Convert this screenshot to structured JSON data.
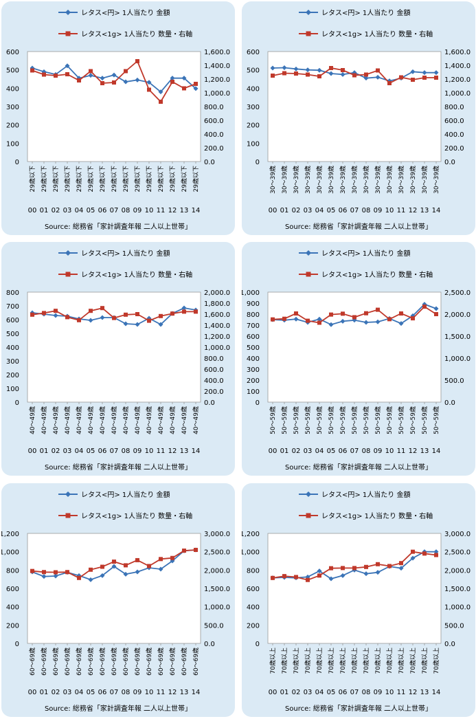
{
  "legend": {
    "amount": "レタス<円> 1人当たり 金額",
    "quantity": "レタス<1g> 1人当たり 数量・右軸"
  },
  "source": "Source: 総務省「家計調査年報 二人以上世帯」",
  "colors": {
    "amount": "#3b74b7",
    "quantity": "#c0392b"
  },
  "x_year_labels": [
    "00",
    "01",
    "02",
    "03",
    "04",
    "05",
    "06",
    "07",
    "08",
    "09",
    "10",
    "11",
    "12",
    "13",
    "14"
  ],
  "chart_data": [
    {
      "type": "line",
      "age_label": "29歳以下",
      "left_ticks": [
        "0",
        "100",
        "200",
        "300",
        "400",
        "500",
        "600"
      ],
      "right_ticks": [
        "0.0",
        "200.0",
        "400.0",
        "600.0",
        "800.0",
        "1,000.0",
        "1,200.0",
        "1,400.0",
        "1,600.0"
      ],
      "ylim_left": [
        0,
        600
      ],
      "ylim_right": [
        0,
        1600
      ],
      "series": [
        {
          "name": "レタス<円> 1人当たり 金額",
          "axis": "left",
          "values": [
            510,
            490,
            475,
            522,
            455,
            470,
            455,
            472,
            435,
            445,
            432,
            380,
            455,
            455,
            398
          ]
        },
        {
          "name": "レタス<1g> 1人当たり 数量・右軸",
          "axis": "right",
          "values": [
            1325,
            1265,
            1250,
            1270,
            1180,
            1315,
            1140,
            1150,
            1315,
            1460,
            1045,
            870,
            1160,
            1065,
            1130
          ]
        }
      ]
    },
    {
      "type": "line",
      "age_label": "30～39歳",
      "left_ticks": [
        "0",
        "100",
        "200",
        "300",
        "400",
        "500",
        "600"
      ],
      "right_ticks": [
        "0.0",
        "200.0",
        "400.0",
        "600.0",
        "800.0",
        "1,000.0",
        "1,200.0",
        "1,400.0",
        "1,600.0"
      ],
      "ylim_left": [
        0,
        600
      ],
      "ylim_right": [
        0,
        1600
      ],
      "series": [
        {
          "name": "レタス<円> 1人当たり 金額",
          "axis": "left",
          "values": [
            510,
            512,
            505,
            500,
            498,
            480,
            475,
            485,
            455,
            460,
            440,
            455,
            490,
            485,
            485
          ]
        },
        {
          "name": "レタス<1g> 1人当たり 数量・右軸",
          "axis": "right",
          "values": [
            1250,
            1285,
            1280,
            1265,
            1240,
            1360,
            1330,
            1255,
            1265,
            1325,
            1140,
            1225,
            1190,
            1220,
            1220
          ]
        }
      ]
    },
    {
      "type": "line",
      "age_label": "40～49歳",
      "left_ticks": [
        "0",
        "100",
        "200",
        "300",
        "400",
        "500",
        "600",
        "700",
        "800"
      ],
      "right_ticks": [
        "0.0",
        "200.0",
        "400.0",
        "600.0",
        "800.0",
        "1,000.0",
        "1,200.0",
        "1,400.0",
        "1,600.0",
        "1,800.0",
        "2,000.0"
      ],
      "ylim_left": [
        0,
        800
      ],
      "ylim_right": [
        0,
        2000
      ],
      "series": [
        {
          "name": "レタス<円> 1人当たり 金額",
          "axis": "left",
          "values": [
            650,
            640,
            630,
            625,
            605,
            595,
            615,
            615,
            570,
            565,
            610,
            565,
            645,
            685,
            670
          ]
        },
        {
          "name": "レタス<1g> 1人当たり 数量・右軸",
          "axis": "right",
          "values": [
            1590,
            1620,
            1660,
            1545,
            1490,
            1660,
            1710,
            1530,
            1590,
            1600,
            1480,
            1565,
            1610,
            1645,
            1645
          ]
        }
      ]
    },
    {
      "type": "line",
      "age_label": "50～59歳",
      "left_ticks": [
        "0",
        "100",
        "200",
        "300",
        "400",
        "500",
        "600",
        "700",
        "800",
        "900",
        "1,000"
      ],
      "right_ticks": [
        "0.0",
        "500.0",
        "1,000.0",
        "1,500.0",
        "2,000.0",
        "2,500.0"
      ],
      "ylim_left": [
        0,
        1000
      ],
      "ylim_right": [
        0,
        2500
      ],
      "series": [
        {
          "name": "レタス<円> 1人当たり 金額",
          "axis": "left",
          "values": [
            750,
            745,
            755,
            725,
            755,
            705,
            735,
            745,
            725,
            730,
            760,
            715,
            785,
            890,
            850
          ]
        },
        {
          "name": "レタス<1g> 1人当たり 数量・右軸",
          "axis": "right",
          "values": [
            1880,
            1895,
            2015,
            1850,
            1805,
            1990,
            2010,
            1930,
            2020,
            2100,
            1885,
            2015,
            1905,
            2170,
            2000
          ]
        }
      ]
    },
    {
      "type": "line",
      "age_label": "60～69歳",
      "left_ticks": [
        "0",
        "200",
        "400",
        "600",
        "800",
        "1,000",
        "1,200"
      ],
      "right_ticks": [
        "0.0",
        "500.0",
        "1,000.0",
        "1,500.0",
        "2,000.0",
        "2,500.0",
        "3,000.0"
      ],
      "ylim_left": [
        0,
        1200
      ],
      "ylim_right": [
        0,
        3000
      ],
      "series": [
        {
          "name": "レタス<円> 1人当たり 金額",
          "axis": "left",
          "values": [
            780,
            730,
            735,
            775,
            740,
            695,
            740,
            840,
            755,
            780,
            825,
            810,
            900,
            1010,
            1020
          ]
        },
        {
          "name": "レタス<1g> 1人当たり 数量・右軸",
          "axis": "right",
          "values": [
            1975,
            1945,
            1940,
            1945,
            1785,
            2010,
            2090,
            2230,
            2130,
            2270,
            2110,
            2300,
            2330,
            2530,
            2550
          ]
        }
      ]
    },
    {
      "type": "line",
      "age_label": "70歳以上",
      "left_ticks": [
        "0",
        "200",
        "400",
        "600",
        "800",
        "1,000",
        "1,200"
      ],
      "right_ticks": [
        "0.0",
        "500.0",
        "1,000.0",
        "1,500.0",
        "2,000.0",
        "2,500.0",
        "3,000.0"
      ],
      "ylim_left": [
        0,
        1200
      ],
      "ylim_right": [
        0,
        3000
      ],
      "series": [
        {
          "name": "レタス<円> 1人当たり 金額",
          "axis": "left",
          "values": [
            715,
            720,
            715,
            725,
            790,
            705,
            740,
            800,
            760,
            775,
            840,
            820,
            930,
            1000,
            1000
          ]
        },
        {
          "name": "レタス<1g> 1人当たり 数量・右軸",
          "axis": "right",
          "values": [
            1785,
            1835,
            1810,
            1730,
            1850,
            2050,
            2055,
            2055,
            2085,
            2160,
            2110,
            2190,
            2500,
            2450,
            2410
          ]
        }
      ]
    }
  ]
}
